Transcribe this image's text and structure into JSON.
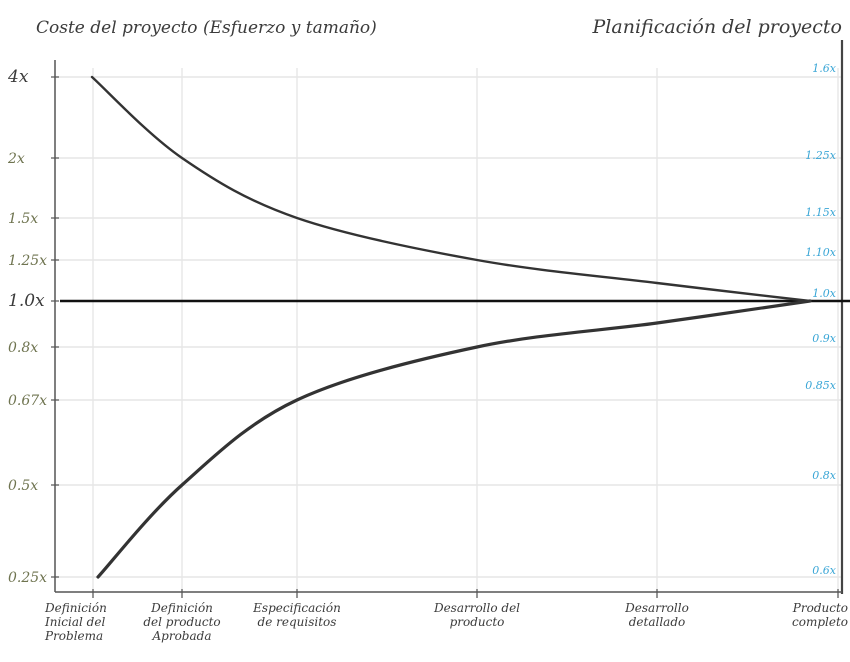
{
  "chart_data": {
    "type": "line",
    "title_left": "Coste del proyecto (Esfuerzo y tamaño)",
    "title_right": "Planificación del proyecto",
    "categories": [
      [
        "Definición",
        "Inicial del",
        "Problema"
      ],
      [
        "Definición",
        "del producto",
        "Aprobada"
      ],
      [
        "Especificación",
        "de requisitos"
      ],
      [
        "Desarrollo del",
        "producto"
      ],
      [
        "Desarrollo",
        "detallado"
      ],
      [
        "Producto",
        "completo"
      ]
    ],
    "y_left_ticks": [
      "4x",
      "2x",
      "1.5x",
      "1.25x",
      "1.0x",
      "0.8x",
      "0.67x",
      "0.5x",
      "0.25x"
    ],
    "y_right_ticks": [
      "1.6x",
      "1.25x",
      "1.15x",
      "1.10x",
      "1.0x",
      "0.9x",
      "0.85x",
      "0.8x",
      "0.6x"
    ],
    "y_scale": "log",
    "series": [
      {
        "values": [
          4.0,
          2.0,
          1.5,
          1.25,
          1.1,
          1.0
        ]
      },
      {
        "values": [
          0.25,
          0.5,
          0.67,
          0.8,
          0.9,
          1.0
        ]
      }
    ],
    "baseline": 1.0,
    "grid": true,
    "colors": {
      "curve": "#333333",
      "grid": "#e6e6e6",
      "left_ticks": "#6f7450",
      "right_ticks": "#3aa6d6",
      "baseline": "#111111"
    }
  }
}
